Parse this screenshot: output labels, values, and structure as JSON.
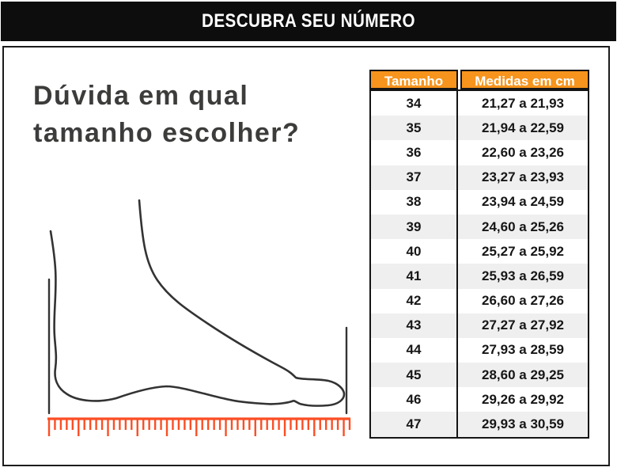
{
  "header": {
    "title": "DESCUBRA SEU NÚMERO"
  },
  "intro": {
    "heading": [
      "Dúvida em qual",
      "tamanho escolher?"
    ]
  },
  "size_table": {
    "columns": [
      "Tamanho",
      "Medidas em cm"
    ],
    "rows": [
      {
        "size": "34",
        "range": "21,27 a 21,93"
      },
      {
        "size": "35",
        "range": "21,94 a 22,59"
      },
      {
        "size": "36",
        "range": "22,60 a 23,26"
      },
      {
        "size": "37",
        "range": "23,27 a 23,93"
      },
      {
        "size": "38",
        "range": "23,94 a 24,59"
      },
      {
        "size": "39",
        "range": "24,60 a 25,26"
      },
      {
        "size": "40",
        "range": "25,27 a 25,92"
      },
      {
        "size": "41",
        "range": "25,93 a 26,59"
      },
      {
        "size": "42",
        "range": "26,60 a 27,26"
      },
      {
        "size": "43",
        "range": "27,27 a 27,92"
      },
      {
        "size": "44",
        "range": "27,93 a 28,59"
      },
      {
        "size": "45",
        "range": "28,60 a 29,25"
      },
      {
        "size": "46",
        "range": "29,26 a 29,92"
      },
      {
        "size": "47",
        "range": "29,93 a 30,59"
      }
    ]
  },
  "illustration": {
    "ruler": {
      "tick_count": 52,
      "long_every": 5
    }
  },
  "colors": {
    "banner_black": "#0d0d0d",
    "table_header_orange": "#f7941d",
    "row_alt_gray": "#efefef",
    "ruler_orange_red": "#fb4e24",
    "heading_gray": "#3c3c3b",
    "line_black": "#333333"
  }
}
